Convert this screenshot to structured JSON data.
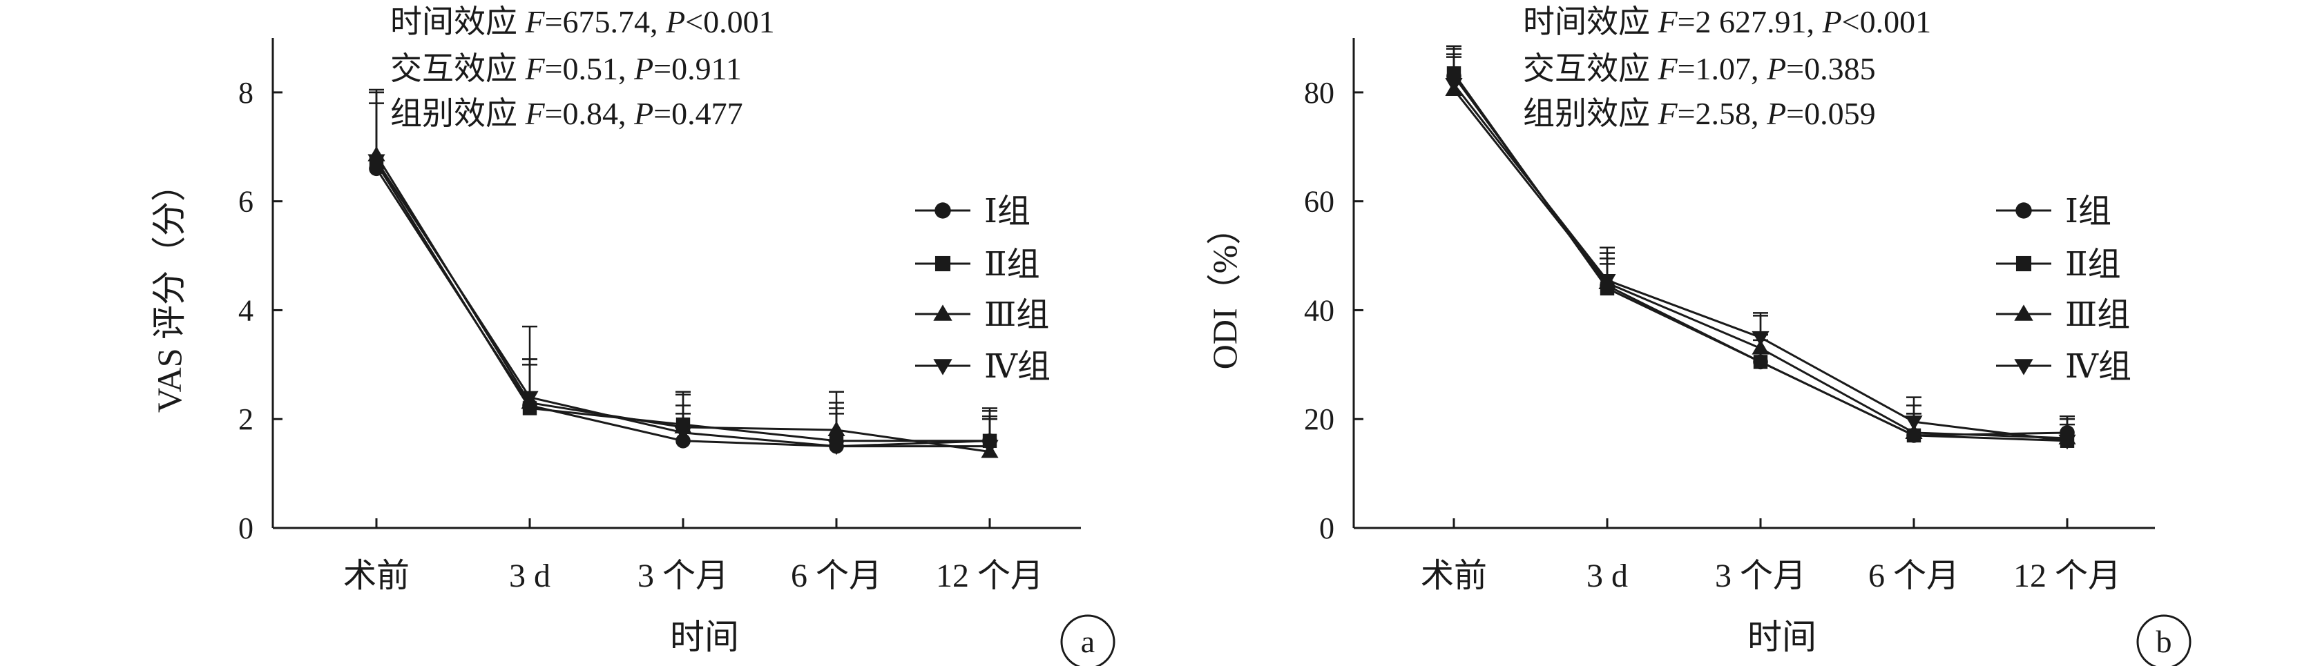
{
  "chart_data": [
    {
      "type": "line",
      "panel_label": "a",
      "ylabel": "VAS 评分（分）",
      "xlabel": "时间",
      "categories": [
        "术前",
        "3 d",
        "3 个月",
        "6 个月",
        "12 个月"
      ],
      "ylim": [
        0,
        9
      ],
      "yticks": [
        0,
        2,
        4,
        6,
        8
      ],
      "annotations": [
        [
          "时间效应 ",
          "F",
          "=675.74, ",
          "P",
          "<0.001"
        ],
        [
          "交互效应 ",
          "F",
          "=0.51, ",
          "P",
          "=0.911"
        ],
        [
          "组别效应 ",
          "F",
          "=0.84, ",
          "P",
          "=0.477"
        ]
      ],
      "series": [
        {
          "name": "Ⅰ组",
          "marker": "circle",
          "values": [
            6.6,
            2.25,
            1.6,
            1.5,
            1.6
          ],
          "errors": [
            1.2,
            0.85,
            0.5,
            0.7,
            0.6
          ]
        },
        {
          "name": "Ⅱ组",
          "marker": "square",
          "values": [
            6.7,
            2.2,
            1.9,
            1.6,
            1.6
          ],
          "errors": [
            1.3,
            0.8,
            0.55,
            0.7,
            0.55
          ]
        },
        {
          "name": "Ⅲ组",
          "marker": "triangle-up",
          "values": [
            6.85,
            2.3,
            1.85,
            1.8,
            1.4
          ],
          "errors": [
            1.2,
            1.4,
            0.65,
            0.7,
            0.6
          ]
        },
        {
          "name": "Ⅳ组",
          "marker": "triangle-down",
          "values": [
            6.75,
            2.4,
            1.75,
            1.5,
            1.5
          ],
          "errors": [
            1.25,
            0.7,
            0.5,
            0.6,
            0.55
          ]
        }
      ],
      "legend_position": "right"
    },
    {
      "type": "line",
      "panel_label": "b",
      "ylabel": "ODI（%）",
      "xlabel": "时间",
      "categories": [
        "术前",
        "3 d",
        "3 个月",
        "6 个月",
        "12 个月"
      ],
      "ylim": [
        0,
        90
      ],
      "yticks": [
        0,
        20,
        40,
        60,
        80
      ],
      "annotations": [
        [
          "时间效应 ",
          "F",
          "=2 627.91, ",
          "P",
          "<0.001"
        ],
        [
          "交互效应 ",
          "F",
          "=1.07, ",
          "P",
          "=0.385"
        ],
        [
          "组别效应 ",
          "F",
          "=2.58, ",
          "P",
          "=0.059"
        ]
      ],
      "series": [
        {
          "name": "Ⅰ组",
          "marker": "circle",
          "values": [
            83,
            44.5,
            30.5,
            17,
            17.5
          ],
          "errors": [
            5,
            5,
            4,
            4,
            3
          ]
        },
        {
          "name": "Ⅱ组",
          "marker": "square",
          "values": [
            83.5,
            44,
            30.5,
            17,
            16
          ],
          "errors": [
            5,
            4.5,
            5,
            4,
            3
          ]
        },
        {
          "name": "Ⅲ组",
          "marker": "triangle-up",
          "values": [
            80.5,
            45,
            33,
            17.5,
            16.5
          ],
          "errors": [
            6,
            6.5,
            6,
            5,
            4
          ]
        },
        {
          "name": "Ⅳ组",
          "marker": "triangle-down",
          "values": [
            81.5,
            45.5,
            35,
            19.5,
            16
          ],
          "errors": [
            5.5,
            5,
            4.5,
            4.5,
            4
          ]
        }
      ],
      "legend_position": "right"
    }
  ]
}
